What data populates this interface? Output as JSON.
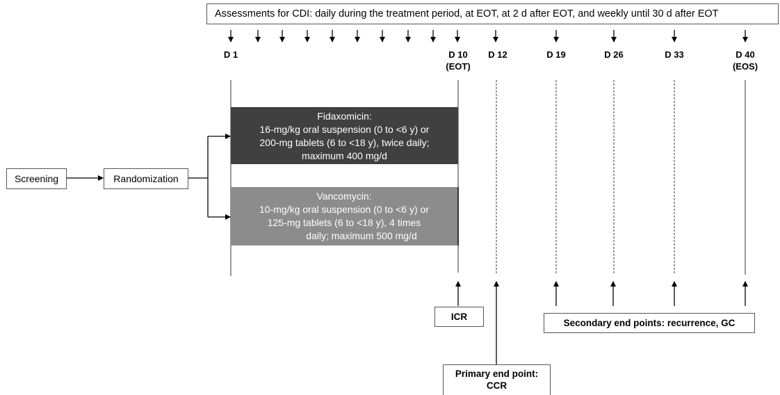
{
  "assessment_text": "Assessments for CDI: daily during the treatment period, at EOT, at  2 d after EOT, and weekly until 30 d after EOT",
  "days": {
    "d1": "D 1",
    "d10": "D 10\n(EOT)",
    "d12": "D 12",
    "d19": "D 19",
    "d26": "D 26",
    "d33": "D 33",
    "d40": "D 40\n(EOS)"
  },
  "screening": "Screening",
  "randomization": "Randomization",
  "fidaxomicin": {
    "title": "Fidaxomicin:",
    "line1": "16-mg/kg oral suspension (0 to <6 y) or",
    "line2": "200-mg tablets (6 to <18 y), twice daily;",
    "line3": "maximum 400 mg/d"
  },
  "vancomycin": {
    "title": "Vancomycin:",
    "line1": "10-mg/kg oral suspension (0 to <6 y) or",
    "line2": "125-mg tablets (6 to <18 y), 4 times",
    "line3": "daily; maximum 500 mg/d"
  },
  "icr": "ICR",
  "primary_endpoint": {
    "line1": "Primary end point:",
    "line2": "CCR"
  },
  "secondary_endpoints": "Secondary end points: recurrence, GC"
}
